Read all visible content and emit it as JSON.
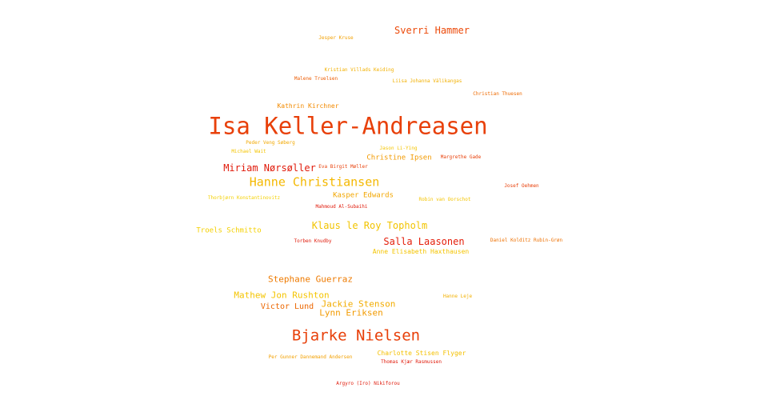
{
  "palette": {
    "dark_orange": "#e8400a",
    "orange": "#ee7a00",
    "amber": "#f2a800",
    "yellow": "#f4c800",
    "red": "#e01a0a"
  },
  "words": [
    {
      "text": "Isa Keller-Andreasen",
      "color": "#e8400a"
    },
    {
      "text": "Bjarke Nielsen",
      "color": "#e8400a"
    },
    {
      "text": "Hanne Christiansen",
      "color": "#f4b800"
    },
    {
      "text": "Sverri Hammer",
      "color": "#ec4a0a"
    },
    {
      "text": "Klaus le Roy Topholm",
      "color": "#f2c400"
    },
    {
      "text": "Salla Laasonen",
      "color": "#e41e0a"
    },
    {
      "text": "Miriam Nørsøller",
      "color": "#e01a0a"
    },
    {
      "text": "Stephane Guerraz",
      "color": "#ee7a00"
    },
    {
      "text": "Mathew Jon Rushton",
      "color": "#f4c400"
    },
    {
      "text": "Jackie Stenson",
      "color": "#f2ac00"
    },
    {
      "text": "Lynn Eriksen",
      "color": "#f29a00"
    },
    {
      "text": "Victor Lund",
      "color": "#ec6600"
    },
    {
      "text": "Troels Schmitto",
      "color": "#f4d000"
    },
    {
      "text": "Christine Ipsen",
      "color": "#f29a00"
    },
    {
      "text": "Kasper Edwards",
      "color": "#f2a600"
    },
    {
      "text": "Anne Elisabeth Haxthausen",
      "color": "#f4c400"
    },
    {
      "text": "Charlotte Stisen Flyger",
      "color": "#f4c000"
    },
    {
      "text": "Kathrin Kirchner",
      "color": "#f28a00"
    },
    {
      "text": "Jesper Kruse",
      "color": "#f2a000"
    },
    {
      "text": "Kristian Villads Keiding",
      "color": "#f2b000"
    },
    {
      "text": "Malene Truelsen",
      "color": "#ec5a00"
    },
    {
      "text": "Liisa Johanna Välikangas",
      "color": "#f2b000"
    },
    {
      "text": "Christian Thuesen",
      "color": "#ee6a00"
    },
    {
      "text": "Peder Veng Søberg",
      "color": "#f2a800"
    },
    {
      "text": "Michael Wait",
      "color": "#f4c400"
    },
    {
      "text": "Jason Li-Ying",
      "color": "#f4c400"
    },
    {
      "text": "Margrethe Gade",
      "color": "#e8400a"
    },
    {
      "text": "Eva Birgit Møller",
      "color": "#e8400a"
    },
    {
      "text": "Josef Oehmen",
      "color": "#e8400a"
    },
    {
      "text": "Thorbjørn Konstantinovitz",
      "color": "#f4d000"
    },
    {
      "text": "Mahmoud Al-Subaihi",
      "color": "#e01a0a"
    },
    {
      "text": "Robin van Oorschot",
      "color": "#f4c400"
    },
    {
      "text": "Torben Knudby",
      "color": "#e01a0a"
    },
    {
      "text": "Daniel Kolditz Rubin-Grøn",
      "color": "#ee7000"
    },
    {
      "text": "Hanne Leje",
      "color": "#f2b000"
    },
    {
      "text": "Per Gunner Dannemand Andersen",
      "color": "#f2a000"
    },
    {
      "text": "Thomas Kjær Rasmussen",
      "color": "#e01a0a"
    },
    {
      "text": "Argyro (Iro) Nikiforou",
      "color": "#e01a0a"
    }
  ]
}
